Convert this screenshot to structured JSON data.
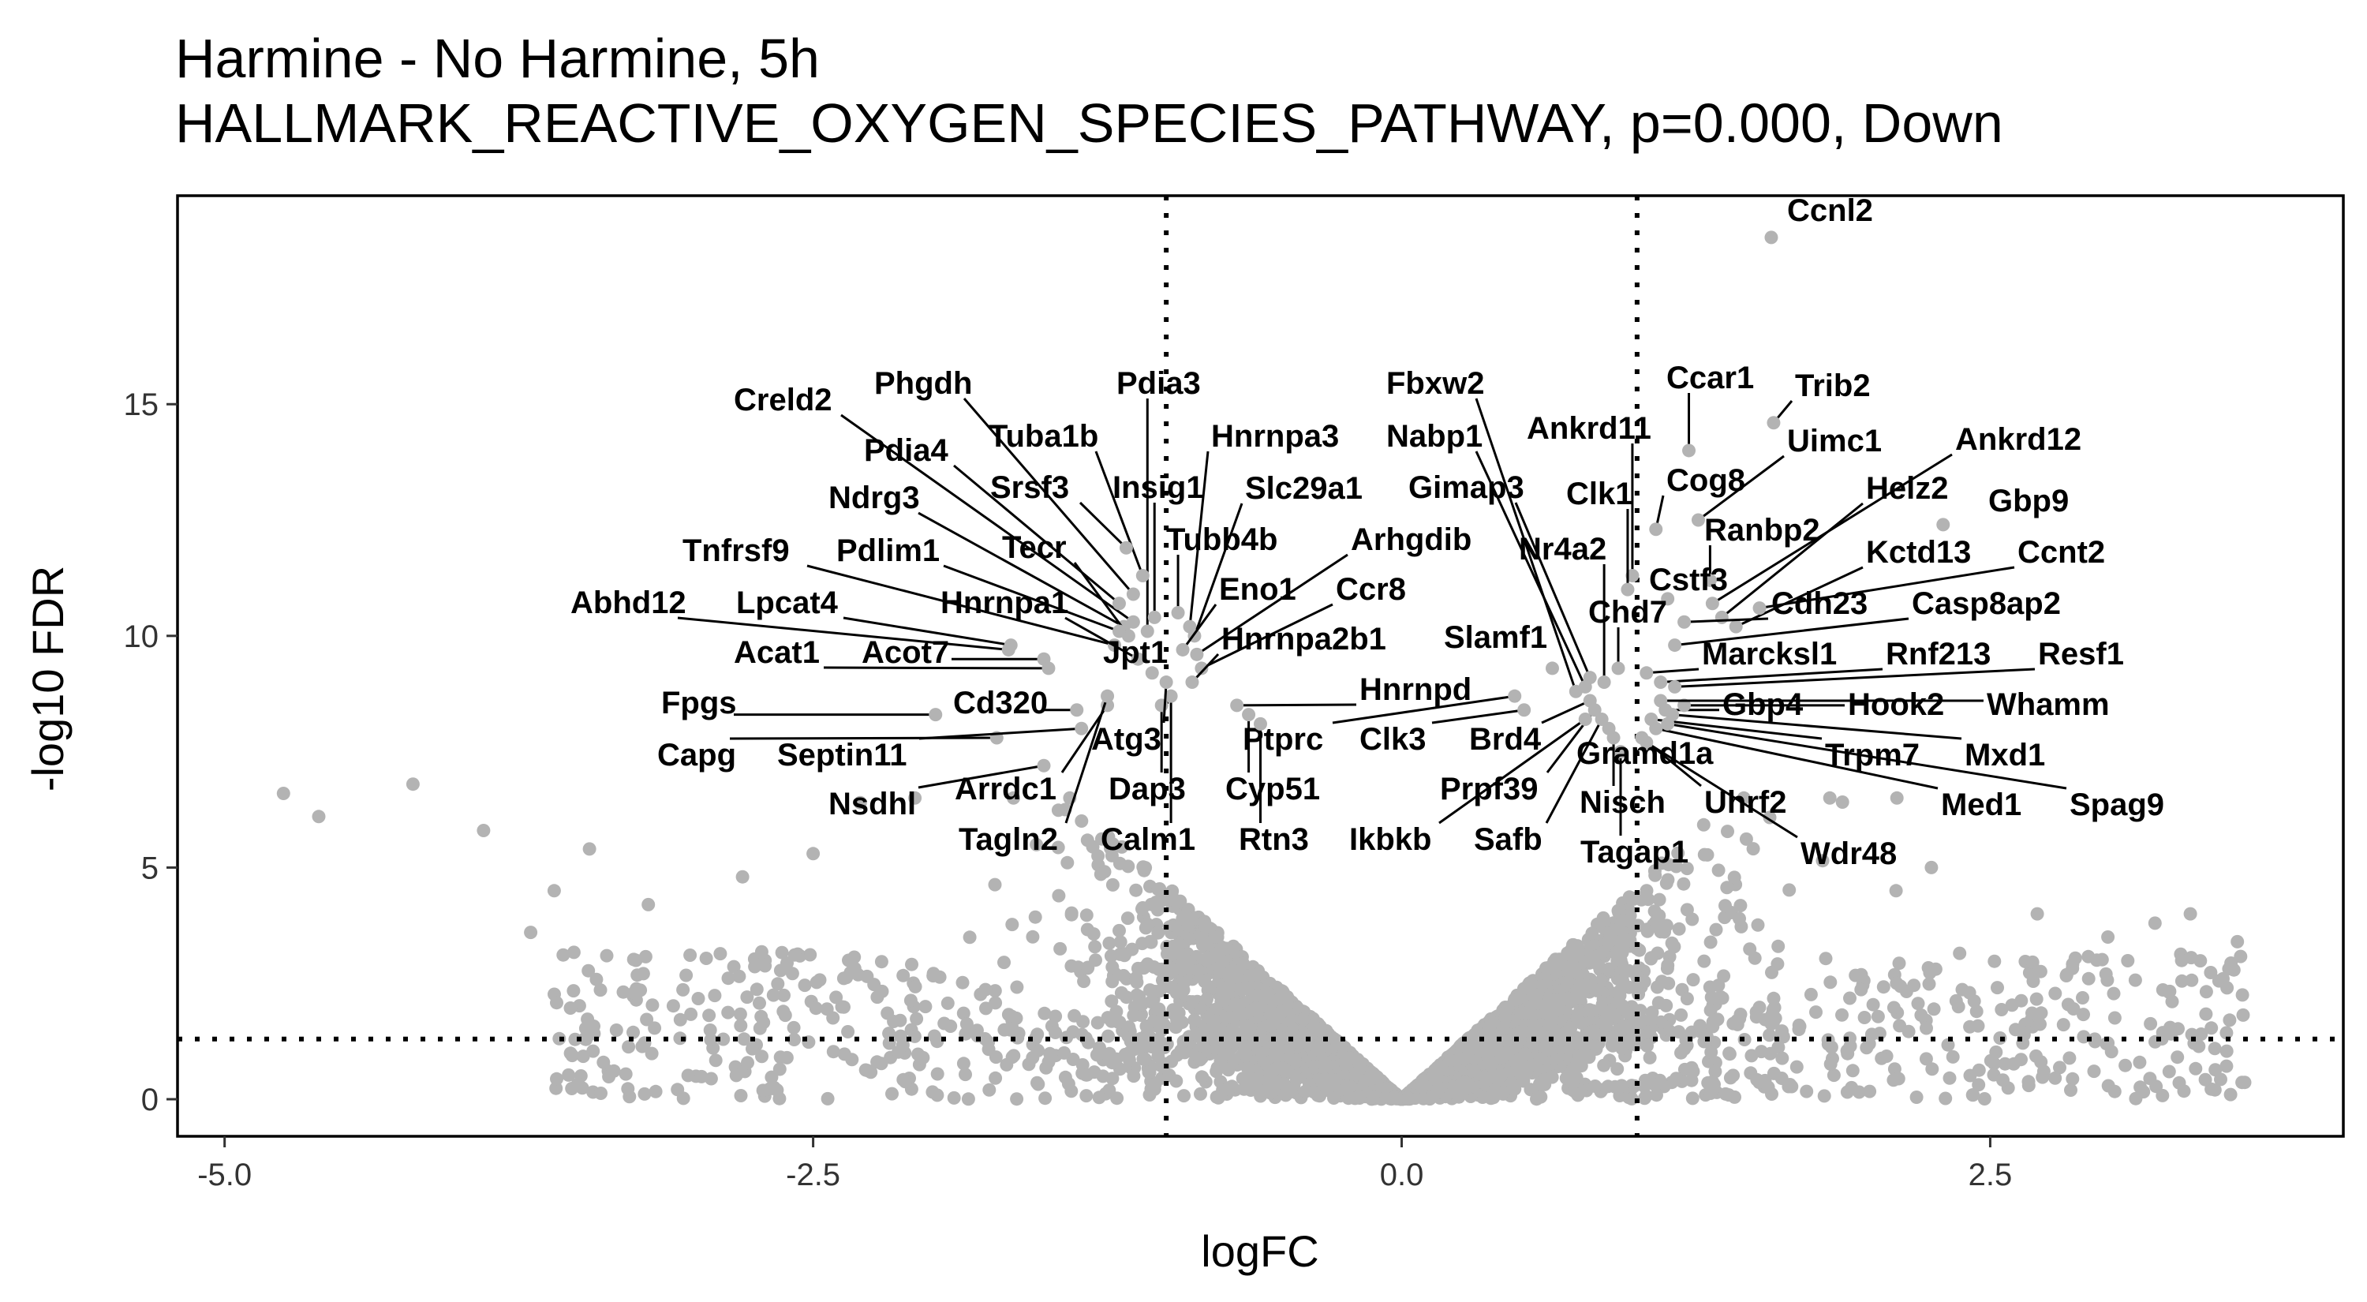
{
  "title": "Harmine - No Harmine, 5h",
  "subtitle": "HALLMARK_REACTIVE_OXYGEN_SPECIES_PATHWAY, p=0.000, Down",
  "chart_data": {
    "type": "scatter",
    "title": "Harmine - No Harmine, 5h",
    "subtitle": "HALLMARK_REACTIVE_OXYGEN_SPECIES_PATHWAY, p=0.000, Down",
    "xlabel": "logFC",
    "ylabel": "-log10 FDR",
    "xlim": [
      -5.2,
      4.0
    ],
    "ylim": [
      -0.8,
      19.5
    ],
    "xticks": [
      -5.0,
      -2.5,
      0.0,
      2.5
    ],
    "xtick_labels": [
      "-5.0",
      "-2.5",
      "0.0",
      "2.5"
    ],
    "yticks": [
      0,
      5,
      10,
      15
    ],
    "ytick_labels": [
      "0",
      "5",
      "10",
      "15"
    ],
    "thresholds": {
      "logfc": [
        -1,
        1
      ],
      "neg_log10_fdr": 1.3
    },
    "grid": false,
    "point_color": "#b3b3b3",
    "labels": [
      {
        "name": "Ccnl2",
        "x": 1.57,
        "y": 18.6
      },
      {
        "name": "Trib2",
        "x": 1.58,
        "y": 14.6
      },
      {
        "name": "Ccar1",
        "x": 1.22,
        "y": 14.0
      },
      {
        "name": "Uimc1",
        "x": 1.26,
        "y": 12.5
      },
      {
        "name": "Ankrd12",
        "x": 1.32,
        "y": 10.7
      },
      {
        "name": "Gbp9",
        "x": 2.3,
        "y": 12.4
      },
      {
        "name": "Cog8",
        "x": 1.08,
        "y": 12.3
      },
      {
        "name": "Helz2",
        "x": 1.36,
        "y": 10.4
      },
      {
        "name": "Ranbp2",
        "x": 1.31,
        "y": 11.2
      },
      {
        "name": "Kctd13",
        "x": 1.42,
        "y": 10.2
      },
      {
        "name": "Ccnt2",
        "x": 1.52,
        "y": 10.6
      },
      {
        "name": "Cstf3",
        "x": 1.13,
        "y": 10.8
      },
      {
        "name": "Cdh23",
        "x": 1.2,
        "y": 10.3
      },
      {
        "name": "Casp8ap2",
        "x": 1.16,
        "y": 9.8
      },
      {
        "name": "Marcksl1",
        "x": 1.04,
        "y": 9.2
      },
      {
        "name": "Rnf213",
        "x": 1.1,
        "y": 9.0
      },
      {
        "name": "Resf1",
        "x": 1.16,
        "y": 8.9
      },
      {
        "name": "Gbp4",
        "x": 1.12,
        "y": 8.4
      },
      {
        "name": "Hook2",
        "x": 1.2,
        "y": 8.5
      },
      {
        "name": "Whamm",
        "x": 1.1,
        "y": 8.6
      },
      {
        "name": "Trpm7",
        "x": 1.06,
        "y": 8.2
      },
      {
        "name": "Mxd1",
        "x": 1.15,
        "y": 8.3
      },
      {
        "name": "Med1",
        "x": 1.08,
        "y": 8.0
      },
      {
        "name": "Spag9",
        "x": 1.13,
        "y": 8.1
      },
      {
        "name": "Uhrf2",
        "x": 1.02,
        "y": 7.8
      },
      {
        "name": "Wdr48",
        "x": 1.04,
        "y": 7.7
      },
      {
        "name": "Tagap1",
        "x": 0.93,
        "y": 7.5
      },
      {
        "name": "Nisch",
        "x": 0.9,
        "y": 7.8
      },
      {
        "name": "Gramd1a",
        "x": 0.88,
        "y": 8.0
      },
      {
        "name": "Safb",
        "x": 0.85,
        "y": 8.2
      },
      {
        "name": "Prpf39",
        "x": 0.82,
        "y": 8.4
      },
      {
        "name": "Brd4",
        "x": 0.8,
        "y": 8.6
      },
      {
        "name": "Ikbkb",
        "x": 0.78,
        "y": 8.2
      },
      {
        "name": "Clk3",
        "x": 0.52,
        "y": 8.4
      },
      {
        "name": "Ptprc",
        "x": 0.48,
        "y": 8.7
      },
      {
        "name": "Slamf1",
        "x": 0.64,
        "y": 9.3
      },
      {
        "name": "Chd7",
        "x": 0.92,
        "y": 9.3
      },
      {
        "name": "Nr4a2",
        "x": 0.86,
        "y": 9.0
      },
      {
        "name": "Gimap3",
        "x": 0.8,
        "y": 9.1
      },
      {
        "name": "Nabp1",
        "x": 0.78,
        "y": 8.9
      },
      {
        "name": "Fbxw2",
        "x": 0.74,
        "y": 8.8
      },
      {
        "name": "Ankrd11",
        "x": 0.98,
        "y": 11.3
      },
      {
        "name": "Clk1",
        "x": 0.96,
        "y": 11.0
      },
      {
        "name": "Pdia3",
        "x": -1.08,
        "y": 10.1
      },
      {
        "name": "Hnrnpa3",
        "x": -0.9,
        "y": 10.2
      },
      {
        "name": "Slc29a1",
        "x": -0.88,
        "y": 10.0
      },
      {
        "name": "Tubb4b",
        "x": -0.95,
        "y": 10.5
      },
      {
        "name": "Arhgdib",
        "x": -0.87,
        "y": 9.6
      },
      {
        "name": "Eno1",
        "x": -0.93,
        "y": 9.7
      },
      {
        "name": "Ccr8",
        "x": -0.85,
        "y": 9.3
      },
      {
        "name": "Hnrnpa2b1",
        "x": -0.89,
        "y": 9.0
      },
      {
        "name": "Hnrnpd",
        "x": -0.7,
        "y": 8.5
      },
      {
        "name": "Cyp51",
        "x": -0.65,
        "y": 8.3
      },
      {
        "name": "Rtn3",
        "x": -0.6,
        "y": 8.1
      },
      {
        "name": "Calm1",
        "x": -0.98,
        "y": 8.7
      },
      {
        "name": "Dap3",
        "x": -1.02,
        "y": 8.5
      },
      {
        "name": "Atg3",
        "x": -1.0,
        "y": 9.0
      },
      {
        "name": "Insig1",
        "x": -1.05,
        "y": 10.4
      },
      {
        "name": "Tuba1b",
        "x": -1.1,
        "y": 11.3
      },
      {
        "name": "Phgdh",
        "x": -1.14,
        "y": 10.9
      },
      {
        "name": "Creld2",
        "x": -1.14,
        "y": 10.3
      },
      {
        "name": "Pdia4",
        "x": -1.2,
        "y": 10.7
      },
      {
        "name": "Srsf3",
        "x": -1.17,
        "y": 11.9
      },
      {
        "name": "Ndrg3",
        "x": -1.18,
        "y": 10.2
      },
      {
        "name": "Tecr",
        "x": -1.16,
        "y": 10.0
      },
      {
        "name": "Pdlim1",
        "x": -1.2,
        "y": 10.1
      },
      {
        "name": "Tnfrsf9",
        "x": -1.22,
        "y": 9.8
      },
      {
        "name": "Hnrnpa1",
        "x": -1.12,
        "y": 9.5
      },
      {
        "name": "Jpt1",
        "x": -1.06,
        "y": 9.2
      },
      {
        "name": "Lpcat4",
        "x": -1.66,
        "y": 9.8
      },
      {
        "name": "Abhd12",
        "x": -1.67,
        "y": 9.7
      },
      {
        "name": "Acot7",
        "x": -1.52,
        "y": 9.5
      },
      {
        "name": "Acat1",
        "x": -1.5,
        "y": 9.3
      },
      {
        "name": "Fpgs",
        "x": -1.98,
        "y": 8.3
      },
      {
        "name": "Cd320",
        "x": -1.38,
        "y": 8.4
      },
      {
        "name": "Capg",
        "x": -1.72,
        "y": 7.8
      },
      {
        "name": "Septin11",
        "x": -1.36,
        "y": 8.0
      },
      {
        "name": "Arrdc1",
        "x": -1.25,
        "y": 8.5
      },
      {
        "name": "Nsdhl",
        "x": -1.52,
        "y": 7.2
      },
      {
        "name": "Tagln2",
        "x": -1.25,
        "y": 8.7
      }
    ]
  }
}
